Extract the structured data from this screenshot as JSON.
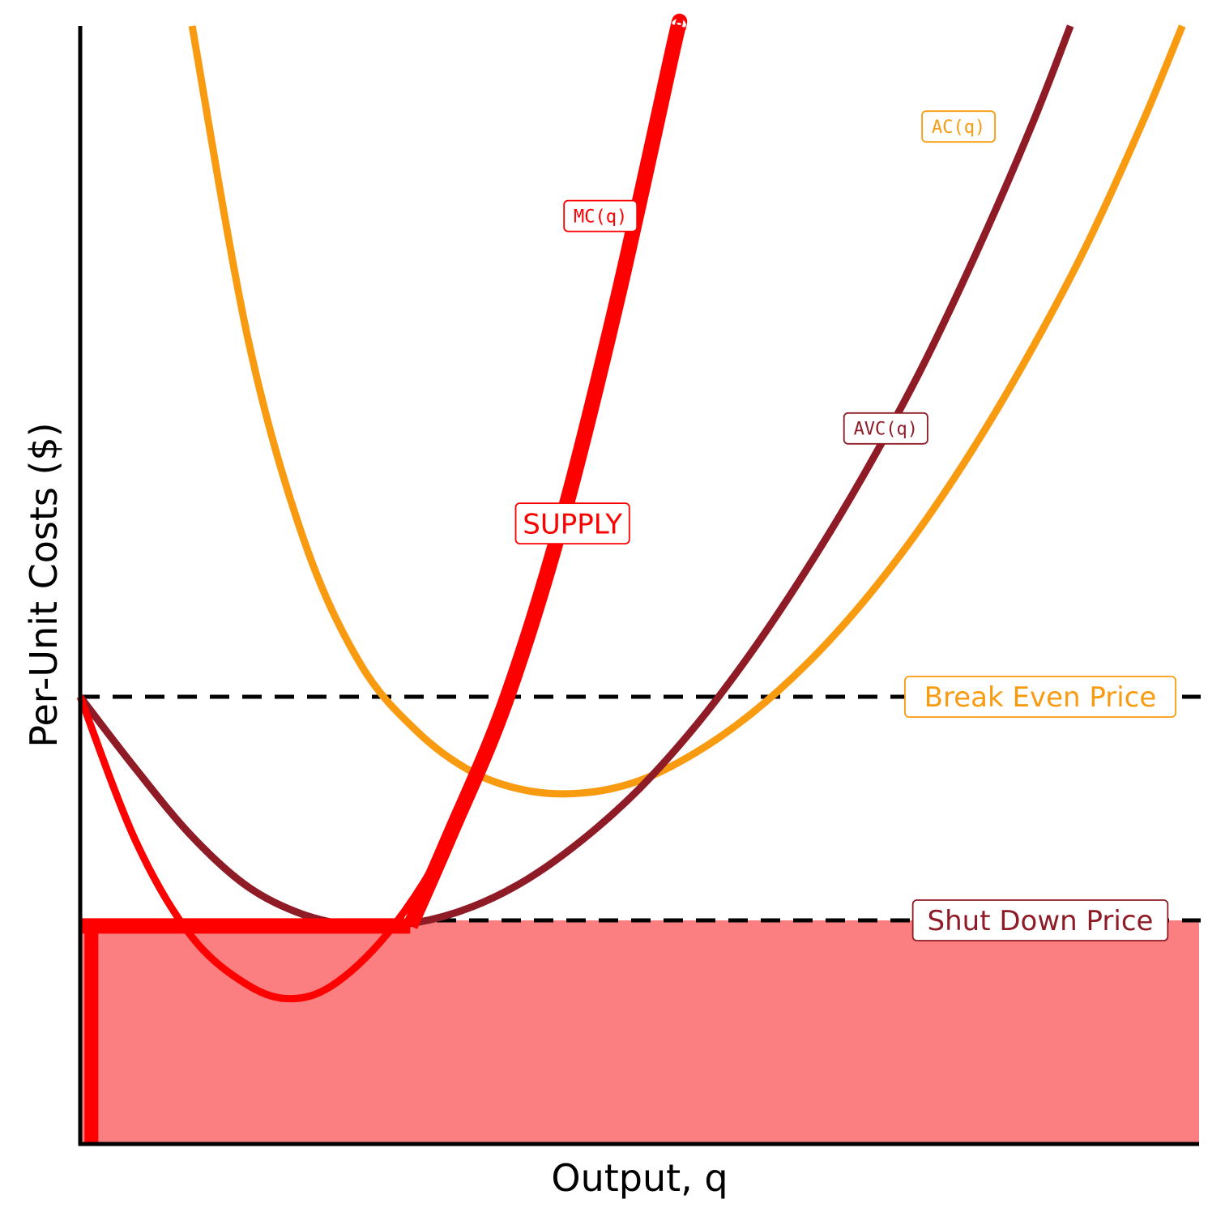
{
  "chart_data": {
    "type": "line",
    "title": "",
    "xlabel": "Output, q",
    "ylabel": "Per-Unit Costs ($)",
    "xlim": [
      0,
      10
    ],
    "ylim": [
      0,
      10
    ],
    "grid": false,
    "legend": "none",
    "series": [
      {
        "name": "AC(q)",
        "color": "#f99b11",
        "points": [
          [
            1.0,
            10.0
          ],
          [
            1.5,
            7.2
          ],
          [
            2.0,
            5.4
          ],
          [
            2.5,
            4.3
          ],
          [
            3.0,
            3.7
          ],
          [
            3.5,
            3.33
          ],
          [
            4.0,
            3.16
          ],
          [
            4.5,
            3.14
          ],
          [
            5.0,
            3.25
          ],
          [
            5.5,
            3.5
          ],
          [
            6.0,
            3.85
          ],
          [
            6.5,
            4.3
          ],
          [
            7.0,
            4.85
          ],
          [
            7.5,
            5.5
          ],
          [
            8.0,
            6.25
          ],
          [
            8.5,
            7.1
          ],
          [
            9.0,
            8.05
          ],
          [
            9.5,
            9.15
          ],
          [
            9.85,
            10.0
          ]
        ]
      },
      {
        "name": "AVC(q)",
        "color": "#8e1b26",
        "points": [
          [
            0.0,
            4.0
          ],
          [
            0.5,
            3.35
          ],
          [
            1.0,
            2.75
          ],
          [
            1.5,
            2.3
          ],
          [
            2.0,
            2.05
          ],
          [
            2.5,
            1.95
          ],
          [
            3.0,
            1.98
          ],
          [
            3.5,
            2.12
          ],
          [
            4.0,
            2.37
          ],
          [
            4.5,
            2.73
          ],
          [
            5.0,
            3.18
          ],
          [
            5.5,
            3.74
          ],
          [
            6.0,
            4.4
          ],
          [
            6.5,
            5.15
          ],
          [
            7.0,
            5.98
          ],
          [
            7.5,
            6.9
          ],
          [
            8.0,
            7.95
          ],
          [
            8.5,
            9.1
          ],
          [
            8.85,
            10.0
          ]
        ]
      },
      {
        "name": "MC(q)",
        "color": "#fe0000",
        "points": [
          [
            0.0,
            4.0
          ],
          [
            0.5,
            2.7
          ],
          [
            1.0,
            1.85
          ],
          [
            1.5,
            1.42
          ],
          [
            1.9,
            1.3
          ],
          [
            2.3,
            1.45
          ],
          [
            2.8,
            1.95
          ],
          [
            3.3,
            2.75
          ],
          [
            3.8,
            3.95
          ],
          [
            4.3,
            5.55
          ],
          [
            4.8,
            7.55
          ],
          [
            5.3,
            9.8
          ],
          [
            5.35,
            10.0
          ]
        ]
      }
    ],
    "supply": {
      "label": "SUPPLY",
      "color": "#fe0000",
      "vertical_segment": [
        [
          0.1,
          0.0
        ],
        [
          0.1,
          1.95
        ]
      ],
      "horizontal_segment": [
        [
          0.0,
          1.95
        ],
        [
          2.95,
          1.95
        ]
      ],
      "mc_segment_from_q": 2.95
    },
    "reference_lines": [
      {
        "label": "Break Even Price",
        "y": 4.0,
        "color": "#f99b11",
        "style": "dashed"
      },
      {
        "label": "Shut Down Price",
        "y": 2.0,
        "color": "#8e1b26",
        "style": "dashed"
      }
    ],
    "shaded_region": {
      "y_from": 0.0,
      "y_to": 2.0,
      "color": "#fb7e80"
    },
    "curve_labels": [
      {
        "text": "MC(q)",
        "x": 4.65,
        "y": 8.3,
        "color": "#fe0000"
      },
      {
        "text": "AC(q)",
        "x": 7.85,
        "y": 9.1,
        "color": "#f99b11"
      },
      {
        "text": "AVC(q)",
        "x": 7.2,
        "y": 6.4,
        "color": "#8e1b26"
      },
      {
        "text": "SUPPLY",
        "x": 4.4,
        "y": 5.55,
        "color": "#fe0000"
      }
    ]
  }
}
